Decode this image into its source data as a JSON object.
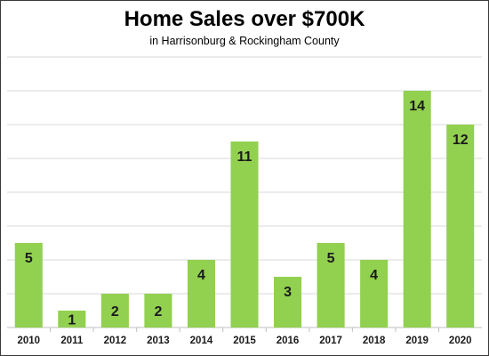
{
  "chart_data": {
    "type": "bar",
    "title": "Home Sales over $700K",
    "subtitle": "in Harrisonburg & Rockingham County",
    "categories": [
      "2010",
      "2011",
      "2012",
      "2013",
      "2014",
      "2015",
      "2016",
      "2017",
      "2018",
      "2019",
      "2020"
    ],
    "values": [
      5,
      1,
      2,
      2,
      4,
      11,
      3,
      5,
      4,
      14,
      12
    ],
    "xlabel": "",
    "ylabel": "",
    "ylim": [
      0,
      16
    ],
    "ytick_step": 2,
    "y_tick_labels_shown": false,
    "grid": true,
    "legend": "none",
    "colors": {
      "bar": "#92d050",
      "grid": "#d9d9d9",
      "axis": "#bfbfbf",
      "label": "#1a1a1a"
    }
  }
}
